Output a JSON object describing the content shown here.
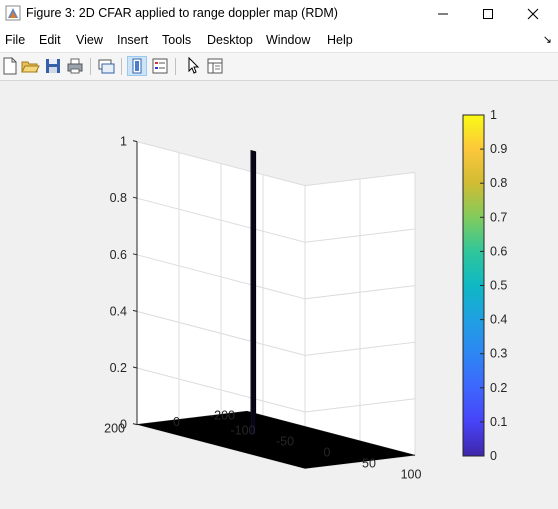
{
  "window": {
    "title": "Figure 3: 2D CFAR applied to range doppler map (RDM)",
    "controls": [
      "minimize",
      "maximize",
      "close"
    ]
  },
  "menu": {
    "items": [
      "File",
      "Edit",
      "View",
      "Insert",
      "Tools",
      "Desktop",
      "Window",
      "Help"
    ],
    "overflow_glyph": "↘"
  },
  "toolbar": {
    "buttons": [
      {
        "name": "new-figure-icon",
        "active": false
      },
      {
        "name": "open-file-icon",
        "active": false
      },
      {
        "name": "save-icon",
        "active": false
      },
      {
        "name": "print-icon",
        "active": false
      },
      {
        "name": "link-figure-icon",
        "active": false
      },
      {
        "name": "insert-colorbar-icon",
        "active": true
      },
      {
        "name": "insert-legend-icon",
        "active": false
      },
      {
        "name": "pointer-icon",
        "active": false
      },
      {
        "name": "property-inspector-icon",
        "active": false
      }
    ]
  },
  "chart_data": {
    "type": "surface",
    "title": "",
    "xlabel": "",
    "ylabel": "",
    "zlabel": "",
    "x_ticks": [
      "-100",
      "-50",
      "0",
      "50",
      "100"
    ],
    "y_ticks": [
      "-200",
      "0",
      "200"
    ],
    "z_ticks": [
      "0",
      "0.2",
      "0.4",
      "0.6",
      "0.8",
      "1"
    ],
    "xlim": [
      -100,
      100
    ],
    "ylim": [
      -200,
      200
    ],
    "zlim": [
      0,
      1
    ],
    "grid": true,
    "colormap": "parula",
    "colorbar": {
      "ticks": [
        "0",
        "0.1",
        "0.2",
        "0.3",
        "0.4",
        "0.5",
        "0.6",
        "0.7",
        "0.8",
        "0.9",
        "1"
      ],
      "range": [
        0,
        1
      ],
      "colors": [
        "#3e26a8",
        "#4743f8",
        "#3e66fd",
        "#2d86f3",
        "#1fa0e2",
        "#0fb8c4",
        "#30c69a",
        "#81cb5d",
        "#d1bc33",
        "#fcc73b",
        "#f9fb15"
      ]
    },
    "peak": {
      "x_range": [
        -30,
        -24
      ],
      "y": 0,
      "z": 1
    },
    "floor_value": 0,
    "surface_edge_color": "#000000",
    "peak_color": "#3b2db0"
  }
}
